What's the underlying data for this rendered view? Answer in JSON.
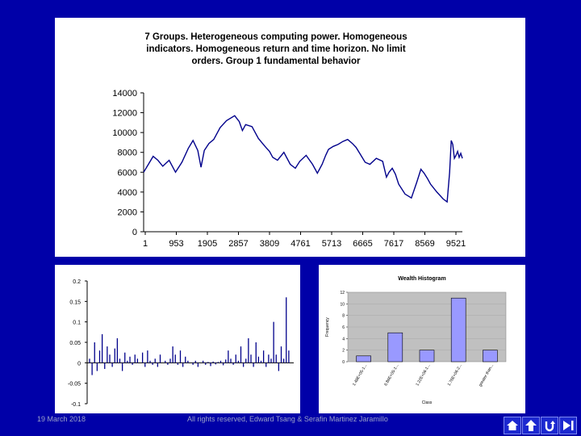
{
  "footer": {
    "date": "19 March 2018",
    "rights": "All rights reserved, Edward Tsang & Serafin Martinez Jaramillo"
  },
  "nav": {
    "icons": [
      "home-icon",
      "up-arrow-icon",
      "return-icon",
      "end-icon"
    ]
  },
  "colors": {
    "background": "#0000a8",
    "line": "#00008b",
    "bar_fill": "#9999ff",
    "plot_area": "#c0c0c0"
  },
  "chart_data": [
    {
      "type": "line",
      "title_lines": [
        "7 Groups. Heterogeneous computing power. Homogeneous",
        "indicators. Homogeneous return and time horizon. No limit",
        "orders. Group 1 fundamental behavior"
      ],
      "xlabel": "",
      "ylabel": "",
      "ylim": [
        0,
        14000
      ],
      "yticks": [
        "0",
        "2000",
        "4000",
        "6000",
        "8000",
        "10000",
        "12000",
        "14000"
      ],
      "xticks": [
        "1",
        "953",
        "1905",
        "2857",
        "3809",
        "4761",
        "5713",
        "6665",
        "7617",
        "8569",
        "9521"
      ],
      "xlim": [
        1,
        10000
      ],
      "x": [
        1,
        150,
        300,
        450,
        600,
        800,
        1000,
        1200,
        1400,
        1550,
        1700,
        1800,
        1905,
        2050,
        2200,
        2400,
        2600,
        2857,
        3000,
        3100,
        3200,
        3400,
        3600,
        3809,
        3950,
        4050,
        4200,
        4400,
        4600,
        4761,
        4900,
        5100,
        5300,
        5450,
        5600,
        5713,
        5800,
        5950,
        6100,
        6250,
        6400,
        6550,
        6665,
        6800,
        6950,
        7100,
        7300,
        7500,
        7617,
        7700,
        7800,
        7900,
        8000,
        8200,
        8400,
        8569,
        8700,
        8800,
        8900,
        9000,
        9200,
        9400,
        9521,
        9600,
        9650,
        9700,
        9750,
        9800,
        9850,
        9900,
        9950,
        10000
      ],
      "y": [
        6000,
        6800,
        7600,
        7200,
        6600,
        7200,
        6000,
        7000,
        8400,
        9200,
        8200,
        6500,
        8200,
        8900,
        9300,
        10500,
        11200,
        11700,
        11100,
        10200,
        10800,
        10600,
        9400,
        8600,
        8100,
        7500,
        7200,
        8000,
        6800,
        6400,
        7100,
        7700,
        6800,
        5900,
        6800,
        7700,
        8300,
        8600,
        8800,
        9100,
        9300,
        8900,
        8500,
        7800,
        7000,
        6800,
        7400,
        7100,
        5500,
        6000,
        6400,
        5800,
        4800,
        3800,
        3400,
        5000,
        6300,
        5900,
        5400,
        4800,
        4000,
        3300,
        3000,
        6000,
        9200,
        8800,
        7400,
        7700,
        8100,
        7500,
        7900,
        7400
      ]
    },
    {
      "type": "bar",
      "description": "returns series plotted as vertical bars around zero",
      "ylim": [
        -0.1,
        0.2
      ],
      "yticks": [
        "0.2",
        "0.15",
        "0.1",
        "0.05",
        "0",
        "-0.05",
        "-0.1"
      ],
      "values": [
        0.01,
        -0.03,
        0.05,
        -0.02,
        0.03,
        0.07,
        -0.015,
        0.04,
        0.02,
        -0.01,
        0.035,
        0.06,
        0.01,
        -0.02,
        0.025,
        0.005,
        0.015,
        -0.005,
        0.02,
        0.01,
        0.0,
        0.025,
        -0.01,
        0.03,
        0.005,
        -0.005,
        0.01,
        -0.01,
        0.02,
        0.0,
        0.005,
        -0.005,
        0.01,
        0.04,
        0.02,
        -0.005,
        0.03,
        -0.01,
        0.015,
        0.005,
        0.0,
        -0.005,
        0.005,
        -0.01,
        0.0,
        0.005,
        -0.005,
        0.002,
        -0.008,
        0.003,
        -0.004,
        0.002,
        0.005,
        -0.006,
        0.008,
        0.03,
        0.01,
        -0.005,
        0.02,
        0.005,
        0.04,
        -0.01,
        0.01,
        0.06,
        0.02,
        -0.01,
        0.05,
        0.015,
        0.005,
        0.03,
        -0.01,
        0.02,
        0.01,
        0.1,
        0.02,
        -0.02,
        0.04,
        0.01,
        0.16,
        0.03
      ]
    },
    {
      "type": "bar",
      "title": "Wealth Histogram",
      "xlabel": "Class",
      "ylabel": "Frequency",
      "ylim": [
        0,
        12
      ],
      "yticks": [
        "0",
        "2",
        "4",
        "6",
        "8",
        "10",
        "12"
      ],
      "categories": [
        "1.48E+05-1...",
        "6.86E+05-1...",
        "1.22E+06-1...",
        "1.76E+06-2...",
        "greater than..."
      ],
      "values": [
        1,
        5,
        2,
        11,
        2
      ]
    }
  ]
}
